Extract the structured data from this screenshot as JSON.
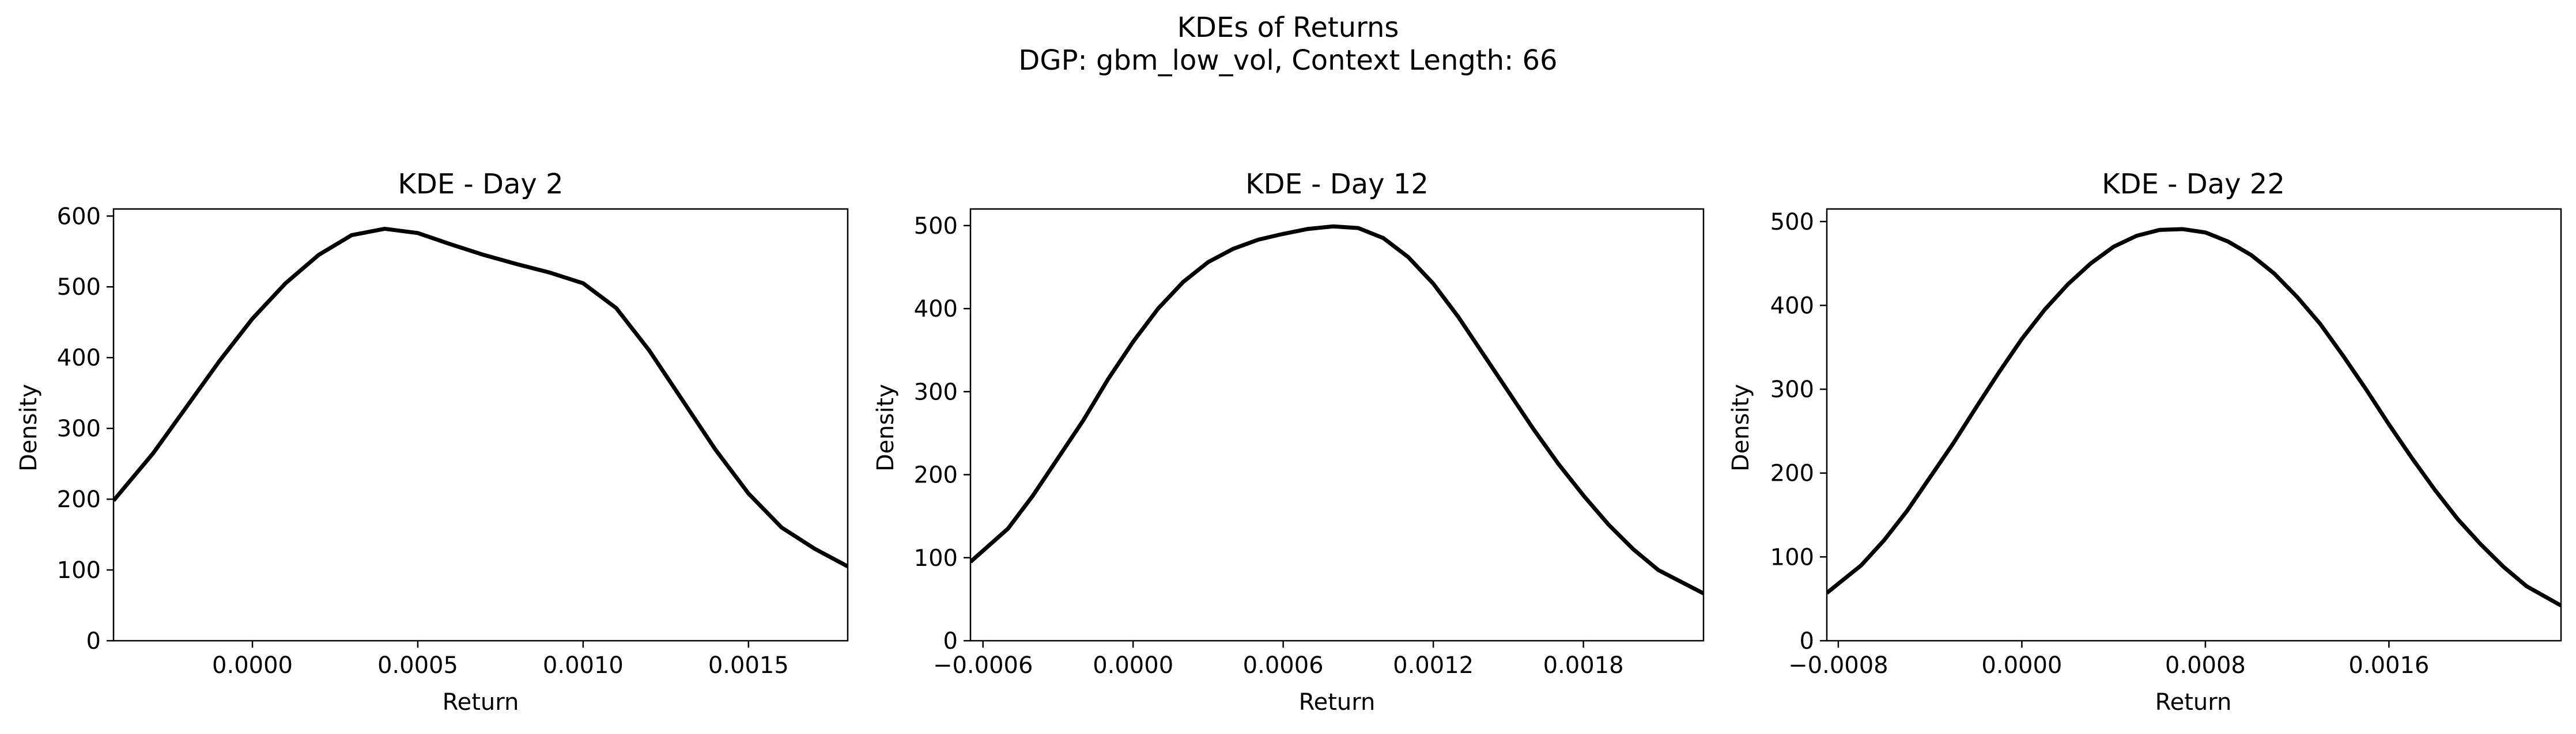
{
  "figure": {
    "title_line1": "KDEs of Returns",
    "title_line2": "DGP: gbm_low_vol, Context Length: 66"
  },
  "chart_data": [
    {
      "type": "line",
      "title": "KDE - Day 2",
      "xlabel": "Return",
      "ylabel": "Density",
      "xlim": [
        -0.00042,
        0.0018
      ],
      "ylim": [
        0,
        610
      ],
      "xticks": [
        0.0,
        0.0005,
        0.001,
        0.0015
      ],
      "xtick_labels": [
        "0.0000",
        "0.0005",
        "0.0010",
        "0.0015"
      ],
      "yticks": [
        0,
        100,
        200,
        300,
        400,
        500,
        600
      ],
      "ytick_labels": [
        "0",
        "100",
        "200",
        "300",
        "400",
        "500",
        "600"
      ],
      "grid": false,
      "line_color": "#000000",
      "x": [
        -0.00042,
        -0.0003,
        -0.0002,
        -0.0001,
        0.0,
        0.0001,
        0.0002,
        0.0003,
        0.0004,
        0.0005,
        0.0006,
        0.0007,
        0.0008,
        0.0009,
        0.001,
        0.0011,
        0.0012,
        0.0013,
        0.0014,
        0.0015,
        0.0016,
        0.0017,
        0.0018
      ],
      "y": [
        198,
        265,
        330,
        395,
        455,
        505,
        545,
        573,
        582,
        576,
        560,
        545,
        532,
        520,
        505,
        470,
        410,
        340,
        270,
        208,
        160,
        130,
        105
      ]
    },
    {
      "type": "line",
      "title": "KDE - Day 12",
      "xlabel": "Return",
      "ylabel": "Density",
      "xlim": [
        -0.00065,
        0.00228
      ],
      "ylim": [
        0,
        520
      ],
      "xticks": [
        -0.0006,
        0.0,
        0.0006,
        0.0012,
        0.0018
      ],
      "xtick_labels": [
        "−0.0006",
        "0.0000",
        "0.0006",
        "0.0012",
        "0.0018"
      ],
      "yticks": [
        0,
        100,
        200,
        300,
        400,
        500
      ],
      "ytick_labels": [
        "0",
        "100",
        "200",
        "300",
        "400",
        "500"
      ],
      "grid": false,
      "line_color": "#000000",
      "x": [
        -0.00065,
        -0.0005,
        -0.0004,
        -0.0003,
        -0.0002,
        -0.0001,
        0.0,
        0.0001,
        0.0002,
        0.0003,
        0.0004,
        0.0005,
        0.0006,
        0.0007,
        0.0008,
        0.0009,
        0.001,
        0.0011,
        0.0012,
        0.0013,
        0.0014,
        0.0015,
        0.0016,
        0.0017,
        0.0018,
        0.0019,
        0.002,
        0.0021,
        0.00228
      ],
      "y": [
        95,
        135,
        175,
        220,
        265,
        315,
        360,
        400,
        432,
        456,
        472,
        483,
        490,
        496,
        499,
        497,
        485,
        462,
        430,
        390,
        345,
        300,
        255,
        213,
        175,
        140,
        110,
        85,
        57
      ]
    },
    {
      "type": "line",
      "title": "KDE - Day 22",
      "xlabel": "Return",
      "ylabel": "Density",
      "xlim": [
        -0.00085,
        0.00235
      ],
      "ylim": [
        0,
        515
      ],
      "xticks": [
        -0.0008,
        0.0,
        0.0008,
        0.0016
      ],
      "xtick_labels": [
        "−0.0008",
        "0.0000",
        "0.0008",
        "0.0016"
      ],
      "yticks": [
        0,
        100,
        200,
        300,
        400,
        500
      ],
      "ytick_labels": [
        "0",
        "100",
        "200",
        "300",
        "400",
        "500"
      ],
      "grid": false,
      "line_color": "#000000",
      "x": [
        -0.00085,
        -0.0007,
        -0.0006,
        -0.0005,
        -0.0004,
        -0.0003,
        -0.0002,
        -0.0001,
        0.0,
        0.0001,
        0.0002,
        0.0003,
        0.0004,
        0.0005,
        0.0006,
        0.0007,
        0.0008,
        0.0009,
        0.001,
        0.0011,
        0.0012,
        0.0013,
        0.0014,
        0.0015,
        0.0016,
        0.0017,
        0.0018,
        0.0019,
        0.002,
        0.0021,
        0.0022,
        0.00235
      ],
      "y": [
        57,
        90,
        120,
        155,
        195,
        235,
        278,
        320,
        360,
        395,
        425,
        450,
        470,
        483,
        490,
        491,
        487,
        476,
        460,
        438,
        410,
        378,
        340,
        300,
        258,
        218,
        180,
        145,
        115,
        88,
        65,
        42
      ]
    }
  ]
}
